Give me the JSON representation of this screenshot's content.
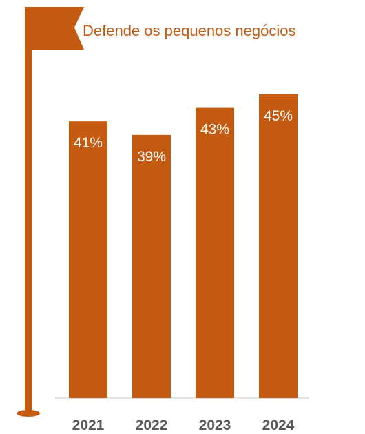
{
  "colors": {
    "accent": "#C55A11",
    "axis": "#D9D9D9",
    "tick_text": "#595959",
    "label_text": "#FFFFFF"
  },
  "icons": [
    "flag-icon"
  ],
  "chart_data": {
    "type": "bar",
    "title": "Defende os pequenos negócios",
    "categories": [
      "2021",
      "2022",
      "2023",
      "2024"
    ],
    "values": [
      41,
      39,
      43,
      45
    ],
    "value_labels": [
      "41%",
      "39%",
      "43%",
      "45%"
    ],
    "ylim": [
      0,
      45
    ],
    "grid": false,
    "legend": "none",
    "xlabel": "",
    "ylabel": ""
  }
}
